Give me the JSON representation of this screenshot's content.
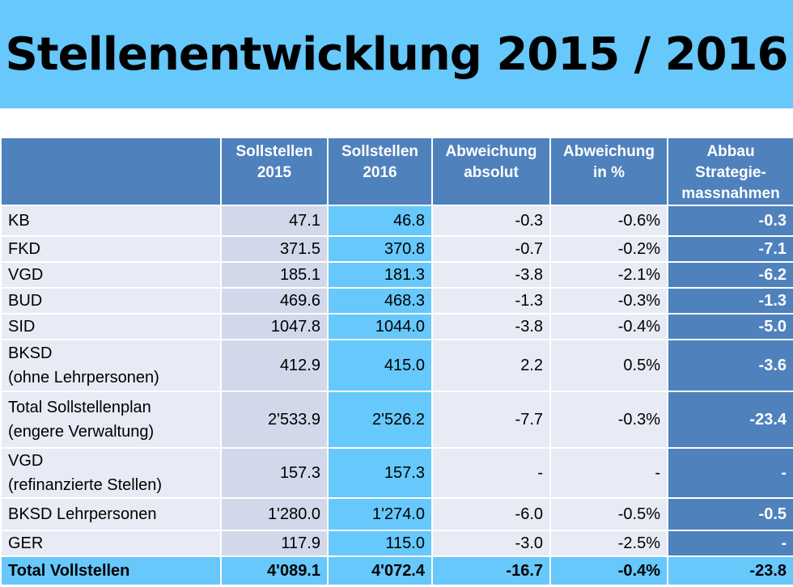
{
  "title": "Stellenentwicklung 2015 / 2016",
  "table": {
    "headers": {
      "sollstellen_2015": "Sollstellen 2015",
      "sollstellen_2016": "Sollstellen 2016",
      "abweichung_absolut": "Abweichung absolut",
      "abweichung_prozent": "Abweichung in %",
      "abbau": "Abbau Strategie-massnahmen"
    },
    "rows": [
      {
        "label1": "KB",
        "label2": "",
        "s2015": "47.1",
        "s2016": "46.8",
        "abs": "-0.3",
        "pct": "-0.6%",
        "strat": "-0.3"
      },
      {
        "label1": "FKD",
        "label2": "",
        "s2015": "371.5",
        "s2016": "370.8",
        "abs": "-0.7",
        "pct": "-0.2%",
        "strat": "-7.1"
      },
      {
        "label1": "VGD",
        "label2": "",
        "s2015": "185.1",
        "s2016": "181.3",
        "abs": "-3.8",
        "pct": "-2.1%",
        "strat": "-6.2"
      },
      {
        "label1": "BUD",
        "label2": "",
        "s2015": "469.6",
        "s2016": "468.3",
        "abs": "-1.3",
        "pct": "-0.3%",
        "strat": "-1.3"
      },
      {
        "label1": "SID",
        "label2": "",
        "s2015": "1047.8",
        "s2016": "1044.0",
        "abs": "-3.8",
        "pct": "-0.4%",
        "strat": "-5.0"
      },
      {
        "label1": "BKSD",
        "label2": "(ohne Lehrpersonen)",
        "s2015": "412.9",
        "s2016": "415.0",
        "abs": "2.2",
        "pct": "0.5%",
        "strat": "-3.6"
      },
      {
        "label1": "Total Sollstellenplan",
        "label2": "(engere Verwaltung)",
        "s2015": "2'533.9",
        "s2016": "2'526.2",
        "abs": "-7.7",
        "pct": "-0.3%",
        "strat": "-23.4"
      },
      {
        "label1": "VGD",
        "label2": "(refinanzierte Stellen)",
        "s2015": "157.3",
        "s2016": "157.3",
        "abs": "-",
        "pct": "-",
        "strat": "-"
      },
      {
        "label1": "BKSD Lehrpersonen",
        "label2": "",
        "s2015": "1'280.0",
        "s2016": "1'274.0",
        "abs": "-6.0",
        "pct": "-0.5%",
        "strat": "-0.5"
      },
      {
        "label1": "GER",
        "label2": "",
        "s2015": "117.9",
        "s2016": "115.0",
        "abs": "-3.0",
        "pct": "-2.5%",
        "strat": "-"
      }
    ],
    "total": {
      "label": "Total Vollstellen",
      "s2015": "4'089.1",
      "s2016": "4'072.4",
      "abs": "-16.7",
      "pct": "-0.4%",
      "strat": "-23.8"
    }
  }
}
